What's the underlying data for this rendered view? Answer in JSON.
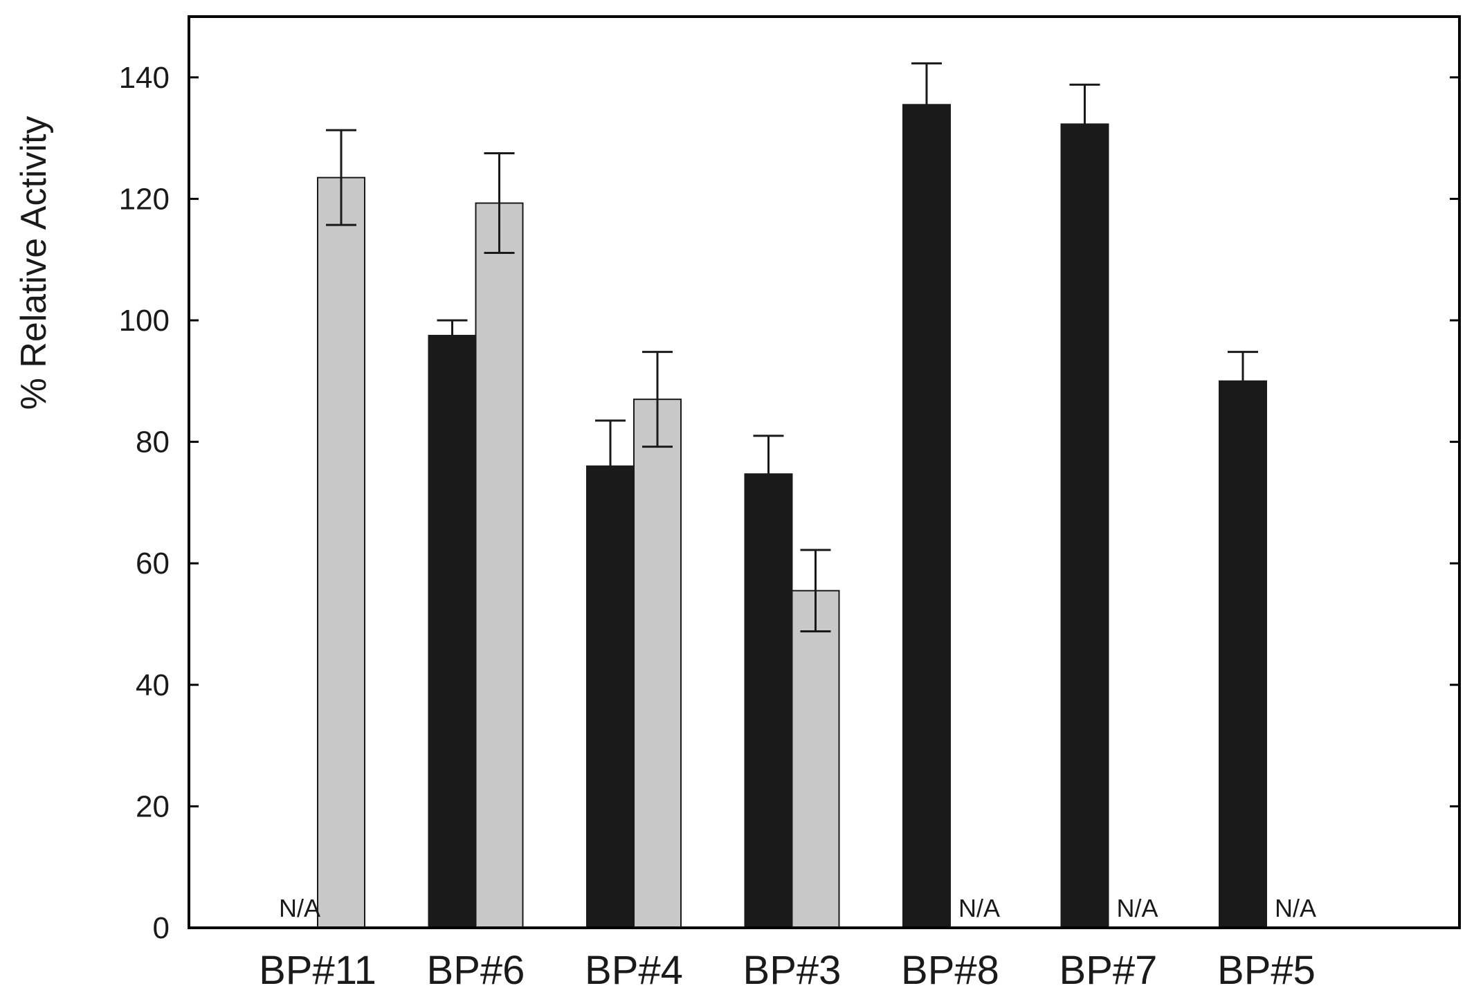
{
  "chart_data": {
    "type": "bar",
    "title": "",
    "xlabel": "",
    "ylabel": "% Relative Activity",
    "ylim": [
      0,
      150
    ],
    "yticks": [
      0,
      20,
      40,
      60,
      80,
      100,
      120,
      140
    ],
    "grid": false,
    "legend": "none",
    "categories": [
      "BP#11",
      "BP#6",
      "BP#4",
      "BP#3",
      "BP#8",
      "BP#7",
      "BP#5"
    ],
    "series": [
      {
        "color": "#1a1a1a",
        "values": [
          null,
          97.5,
          76,
          74.7,
          135.5,
          132.3,
          90
        ],
        "errors": [
          null,
          2.5,
          7.5,
          6.3,
          6.8,
          6.5,
          4.8
        ]
      },
      {
        "color": "#c8c8c8",
        "values": [
          123.5,
          119.3,
          87,
          55.5,
          null,
          null,
          null
        ],
        "errors": [
          7.8,
          8.2,
          7.8,
          6.7,
          null,
          null,
          null
        ]
      }
    ],
    "na_text": "N/A"
  }
}
